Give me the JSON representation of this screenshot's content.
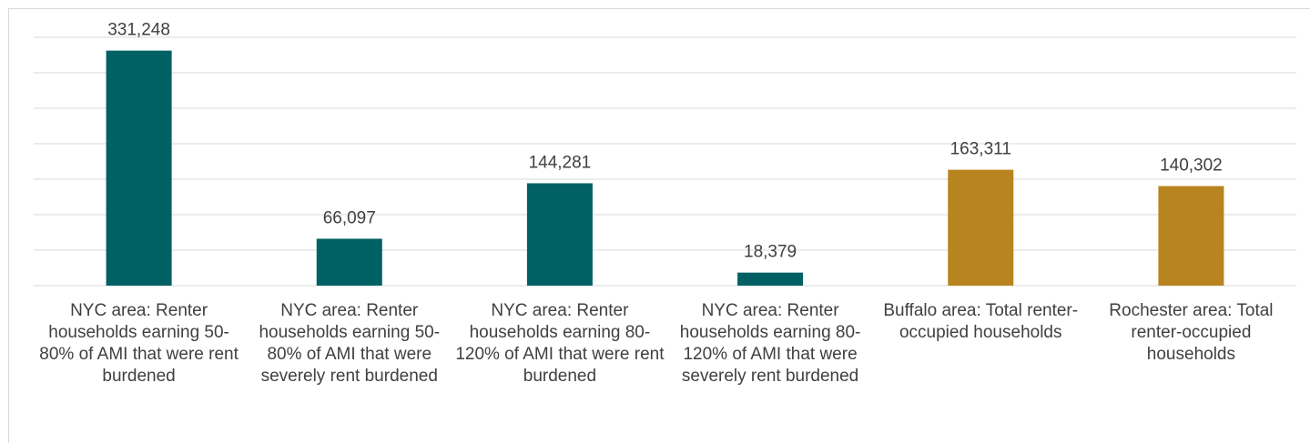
{
  "chart_data": {
    "type": "bar",
    "categories": [
      "NYC area: Renter households earning 50-80% of AMI that were rent burdened",
      "NYC area: Renter households earning 50-80% of AMI that were severely rent burdened",
      "NYC area: Renter households earning 80-120% of AMI that were rent burdened",
      "NYC area: Renter households earning 80-120% of AMI that were severely rent burdened",
      "Buffalo area: Total renter-occupied households",
      "Rochester area: Total renter-occupied households"
    ],
    "values": [
      331248,
      66097,
      144281,
      18379,
      163311,
      140302
    ],
    "value_labels": [
      "331,248",
      "66,097",
      "144,281",
      "18,379",
      "163,311",
      "140,302"
    ],
    "colors": [
      "#006064",
      "#006064",
      "#006064",
      "#006064",
      "#b8841f",
      "#b8841f"
    ],
    "ylim": [
      0,
      350000
    ],
    "yticks": [
      0,
      50000,
      100000,
      150000,
      200000,
      250000,
      300000,
      350000
    ],
    "grid": true
  }
}
